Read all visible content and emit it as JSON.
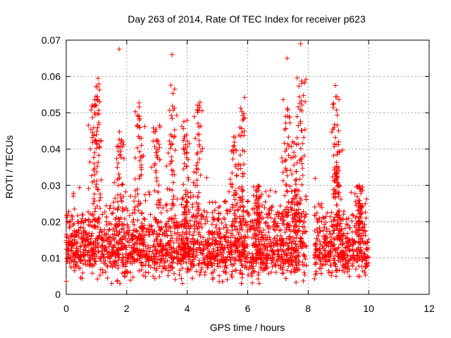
{
  "chart_data": {
    "type": "scatter",
    "title": "Day 263 of 2014, Rate Of TEC Index for receiver p623",
    "xlabel": "GPS time / hours",
    "ylabel": "ROTI / TECUs",
    "xlim": [
      0,
      12
    ],
    "ylim": [
      0,
      0.07
    ],
    "xticks": [
      "0",
      "2",
      "4",
      "6",
      "8",
      "10",
      "12"
    ],
    "yticks": [
      "0",
      "0.01",
      "0.02",
      "0.03",
      "0.04",
      "0.05",
      "0.06",
      "0.07"
    ],
    "grid": true,
    "marker": "+",
    "series": [
      {
        "name": "ROTI",
        "color": "#ff0000",
        "coverage_hours": [
          0,
          10
        ],
        "gap_hours": [
          7.95,
          8.2
        ],
        "notable_points": [
          {
            "x": 1.75,
            "y": 0.0675
          },
          {
            "x": 3.5,
            "y": 0.066
          },
          {
            "x": 7.75,
            "y": 0.069
          },
          {
            "x": 7.3,
            "y": 0.065
          },
          {
            "x": 1.05,
            "y": 0.0595
          },
          {
            "x": 8.9,
            "y": 0.0575
          }
        ]
      }
    ]
  }
}
